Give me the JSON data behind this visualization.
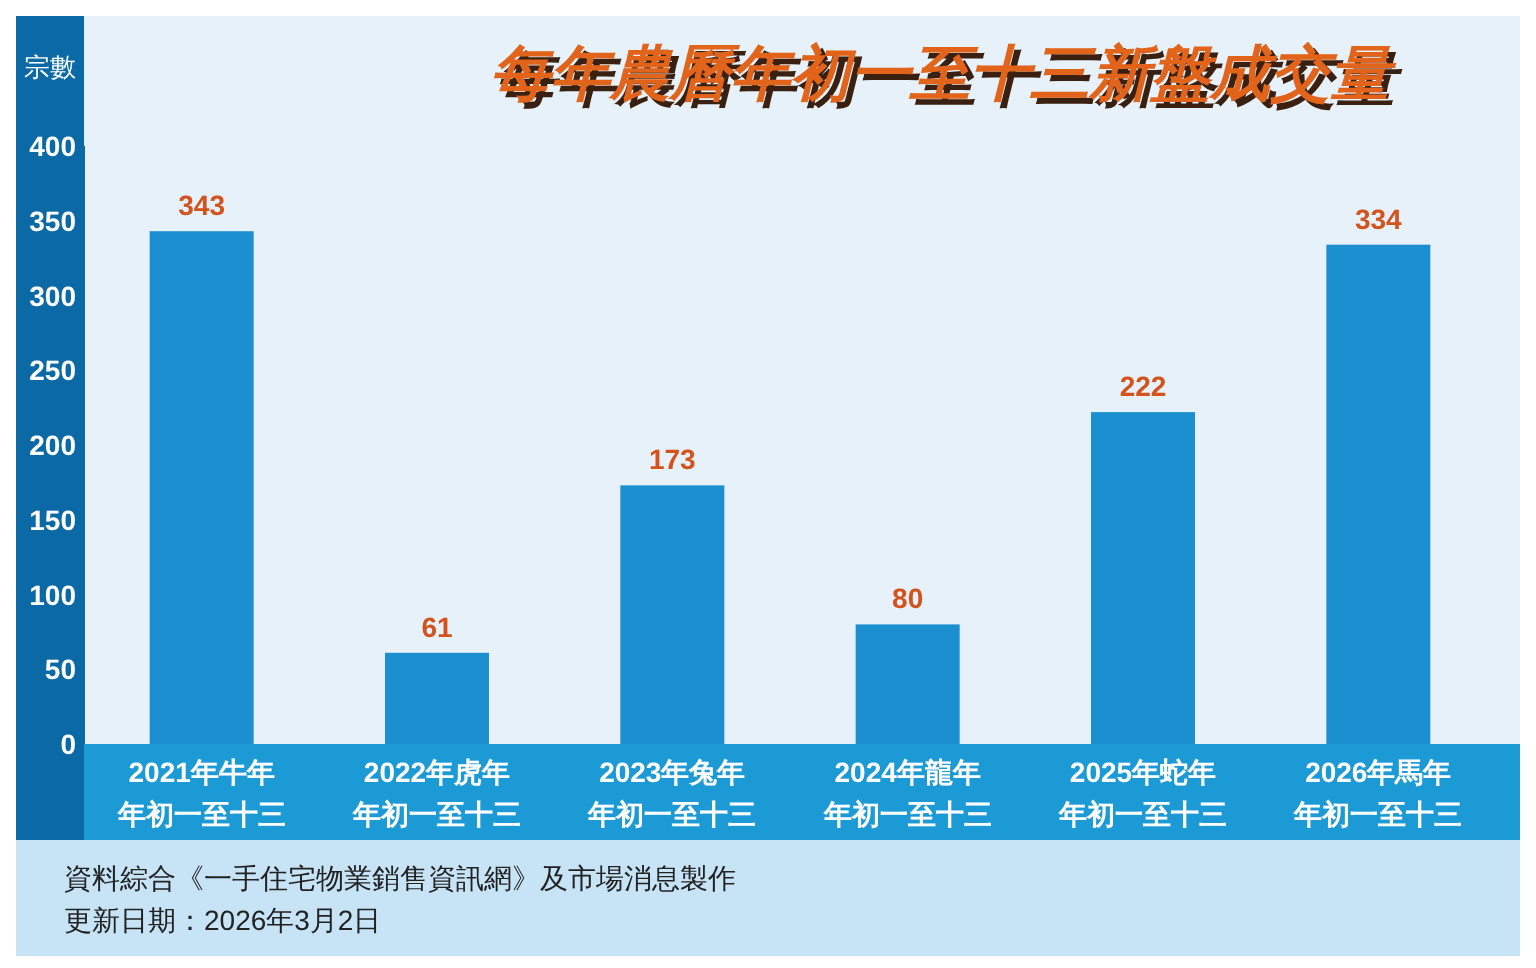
{
  "chart_data": {
    "type": "bar",
    "title": "每年農曆年初一至十三新盤成交量",
    "ylabel": "宗數",
    "categories": [
      "2021年牛年年初一至十三",
      "2022年虎年年初一至十三",
      "2023年兔年年初一至十三",
      "2024年龍年年初一至十三",
      "2025年蛇年年初一至十三",
      "2026年馬年年初一至十三"
    ],
    "values": [
      343,
      61,
      173,
      80,
      222,
      334
    ],
    "color": "#1b8fcf",
    "ylim": [
      0,
      400
    ],
    "yticks": [
      0,
      50,
      100,
      150,
      200,
      250,
      300,
      350,
      400
    ],
    "grid": false,
    "data_labels": true,
    "annotations": [
      "資料綜合《一手住宅物業銷售資訊網》及市場消息製作",
      "更新日期：2026年3月2日"
    ]
  }
}
